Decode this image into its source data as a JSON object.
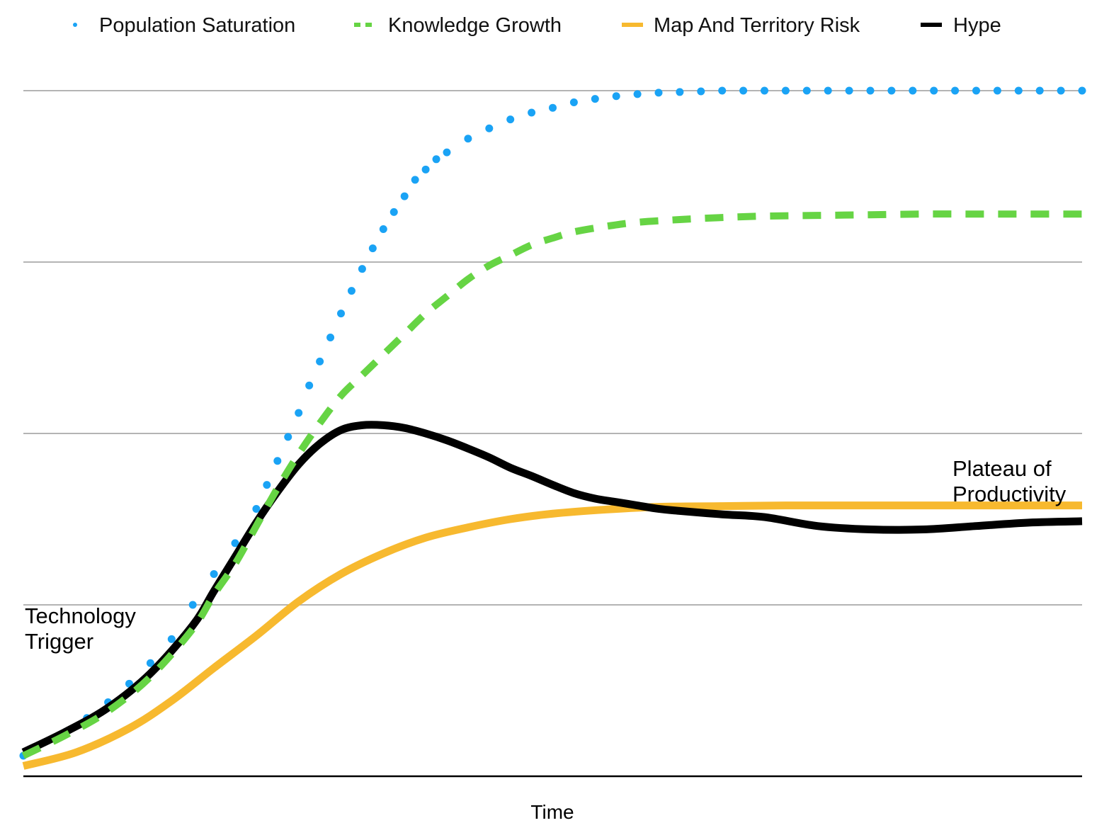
{
  "chart_data": {
    "type": "line",
    "xlabel": "Time",
    "ylabel": "",
    "xlim": [
      0,
      100
    ],
    "ylim": [
      0,
      100
    ],
    "grid": true,
    "legend_position": "top",
    "annotations": [
      {
        "id": "tech-trigger",
        "lines": [
          "Technology",
          "Trigger"
        ]
      },
      {
        "id": "plateau",
        "lines": [
          "Plateau of",
          "Productivity"
        ]
      }
    ],
    "series": [
      {
        "name": "Population Saturation",
        "style": "dotted",
        "color": "#1aa3f5",
        "x": [
          0,
          4,
          6,
          8,
          10,
          12,
          14,
          16,
          18,
          20,
          22,
          23,
          24,
          25,
          26,
          27,
          28,
          29,
          30,
          31,
          32,
          33,
          34,
          35,
          36,
          37,
          38,
          39,
          40,
          42,
          44,
          46,
          48,
          50,
          52,
          54,
          56,
          58,
          60,
          62,
          64,
          66,
          68,
          70,
          72,
          74,
          76,
          78,
          80,
          82,
          84,
          86,
          88,
          90,
          92,
          94,
          96,
          98,
          100
        ],
        "values": [
          3,
          6.5,
          8.5,
          10.8,
          13.5,
          16.5,
          20,
          25,
          29.5,
          34,
          39,
          42.5,
          46,
          49.5,
          53,
          57,
          60.5,
          64,
          67.5,
          70.8,
          74,
          77,
          79.8,
          82.3,
          84.6,
          87,
          88.5,
          90,
          91,
          93,
          94.5,
          95.8,
          96.8,
          97.5,
          98.3,
          98.8,
          99.2,
          99.5,
          99.7,
          99.8,
          99.9,
          100,
          100,
          100,
          100,
          100,
          100,
          100,
          100,
          100,
          100,
          100,
          100,
          100,
          100,
          100,
          100,
          100,
          100
        ]
      },
      {
        "name": "Knowledge Growth",
        "style": "dashed",
        "color": "#66d444",
        "x": [
          0,
          4,
          8,
          12,
          16,
          18,
          20,
          22,
          24,
          26,
          28,
          30,
          32,
          34,
          36,
          38,
          40,
          42,
          44,
          46,
          48,
          50,
          52,
          55,
          58,
          62,
          66,
          70,
          75,
          80,
          85,
          90,
          95,
          100
        ],
        "values": [
          3,
          6,
          9.5,
          14.5,
          21.5,
          26.5,
          31,
          36.5,
          42,
          47,
          51.5,
          55.5,
          58.5,
          61.5,
          64.5,
          67.5,
          70,
          72.5,
          74.5,
          76,
          77.5,
          78.5,
          79.4,
          80.2,
          80.8,
          81.2,
          81.5,
          81.7,
          81.8,
          81.9,
          82,
          82,
          82,
          82
        ]
      },
      {
        "name": "Map And Territory Risk",
        "style": "solid",
        "color": "#f7b92f",
        "x": [
          0,
          5,
          10,
          14,
          18,
          22,
          26,
          30,
          34,
          38,
          42,
          46,
          50,
          55,
          60,
          66,
          72,
          80,
          90,
          100
        ],
        "values": [
          1.5,
          3.5,
          7,
          11,
          15.8,
          20.5,
          25.5,
          29.5,
          32.5,
          34.8,
          36.3,
          37.5,
          38.3,
          38.9,
          39.3,
          39.4,
          39.5,
          39.5,
          39.5,
          39.5
        ]
      },
      {
        "name": "Hype",
        "style": "solid",
        "color": "#000000",
        "x": [
          0,
          4,
          8,
          12,
          16,
          18,
          20,
          22,
          24,
          26,
          28,
          30,
          32,
          34,
          36,
          38,
          40,
          42,
          44,
          46,
          48,
          50,
          52,
          54,
          56,
          58,
          60,
          62,
          66,
          70,
          75,
          80,
          85,
          90,
          95,
          100
        ],
        "values": [
          3.5,
          6.5,
          10,
          15,
          22,
          27,
          32,
          37,
          41.5,
          45.5,
          48.5,
          50.5,
          51.2,
          51.2,
          50.8,
          50,
          49,
          47.8,
          46.5,
          45,
          43.8,
          42.5,
          41.3,
          40.5,
          40,
          39.5,
          39,
          38.7,
          38.2,
          37.8,
          36.5,
          36,
          36,
          36.5,
          37,
          37.2
        ]
      }
    ]
  }
}
